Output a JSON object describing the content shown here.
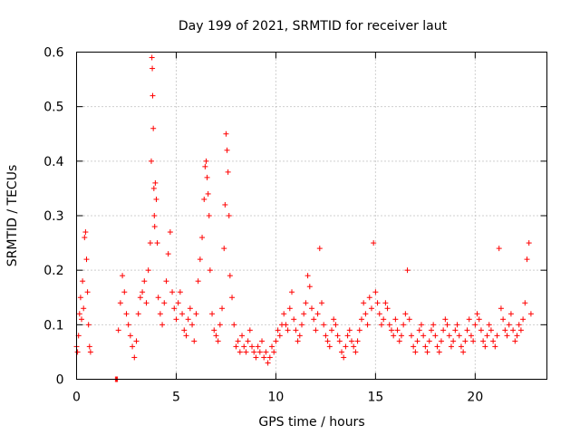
{
  "chart_data": {
    "type": "scatter",
    "title": "Day 199 of 2021, SRMTID for receiver laut",
    "xlabel": "GPS time / hours",
    "ylabel": "SRMTID / TECUs",
    "xlim": [
      0,
      23.6
    ],
    "ylim": [
      0,
      0.6
    ],
    "xticks": [
      "0",
      "5",
      "10",
      "15",
      "20"
    ],
    "xtick_values": [
      0,
      5,
      10,
      15,
      20
    ],
    "yticks": [
      "0",
      "0.1",
      "0.2",
      "0.3",
      "0.4",
      "0.5",
      "0.6"
    ],
    "ytick_values": [
      0,
      0.1,
      0.2,
      0.3,
      0.4,
      0.5,
      0.6
    ],
    "grid": true,
    "marker": "+",
    "color": "#ff0000",
    "series": [
      {
        "name": "SRMTID",
        "x": [
          0.0,
          0.05,
          0.1,
          0.15,
          0.2,
          0.25,
          0.3,
          0.35,
          0.4,
          0.45,
          0.5,
          0.55,
          0.6,
          0.65,
          0.7,
          1.95,
          2.0,
          2.05,
          2.1,
          2.2,
          2.3,
          2.4,
          2.5,
          2.6,
          2.7,
          2.8,
          2.9,
          3.0,
          3.1,
          3.2,
          3.3,
          3.4,
          3.5,
          3.6,
          3.7,
          3.75,
          3.78,
          3.8,
          3.82,
          3.85,
          3.88,
          3.9,
          3.92,
          3.95,
          4.0,
          4.05,
          4.1,
          4.2,
          4.3,
          4.4,
          4.5,
          4.6,
          4.7,
          4.8,
          4.9,
          5.0,
          5.1,
          5.2,
          5.3,
          5.4,
          5.5,
          5.6,
          5.7,
          5.8,
          5.9,
          6.0,
          6.1,
          6.2,
          6.3,
          6.4,
          6.45,
          6.5,
          6.55,
          6.6,
          6.65,
          6.7,
          6.8,
          6.9,
          7.0,
          7.1,
          7.2,
          7.3,
          7.4,
          7.45,
          7.5,
          7.55,
          7.6,
          7.65,
          7.7,
          7.8,
          7.9,
          8.0,
          8.1,
          8.2,
          8.3,
          8.4,
          8.5,
          8.6,
          8.7,
          8.8,
          8.9,
          9.0,
          9.1,
          9.2,
          9.3,
          9.4,
          9.5,
          9.6,
          9.7,
          9.8,
          9.9,
          10.0,
          10.1,
          10.2,
          10.3,
          10.4,
          10.5,
          10.6,
          10.7,
          10.8,
          10.9,
          11.0,
          11.1,
          11.2,
          11.3,
          11.4,
          11.5,
          11.6,
          11.7,
          11.8,
          11.9,
          12.0,
          12.1,
          12.2,
          12.3,
          12.4,
          12.5,
          12.6,
          12.7,
          12.8,
          12.9,
          13.0,
          13.1,
          13.2,
          13.3,
          13.4,
          13.5,
          13.6,
          13.7,
          13.8,
          13.9,
          14.0,
          14.1,
          14.2,
          14.3,
          14.4,
          14.5,
          14.6,
          14.7,
          14.8,
          14.9,
          15.0,
          15.1,
          15.2,
          15.3,
          15.4,
          15.5,
          15.6,
          15.7,
          15.8,
          15.9,
          16.0,
          16.1,
          16.2,
          16.3,
          16.4,
          16.5,
          16.6,
          16.7,
          16.8,
          16.9,
          17.0,
          17.1,
          17.2,
          17.3,
          17.4,
          17.5,
          17.6,
          17.7,
          17.8,
          17.9,
          18.0,
          18.1,
          18.2,
          18.3,
          18.4,
          18.5,
          18.6,
          18.7,
          18.8,
          18.9,
          19.0,
          19.1,
          19.2,
          19.3,
          19.4,
          19.5,
          19.6,
          19.7,
          19.8,
          19.9,
          20.0,
          20.1,
          20.2,
          20.3,
          20.4,
          20.5,
          20.6,
          20.7,
          20.8,
          20.9,
          21.0,
          21.1,
          21.2,
          21.3,
          21.4,
          21.5,
          21.6,
          21.7,
          21.8,
          21.9,
          22.0,
          22.1,
          22.2,
          22.3,
          22.4,
          22.5,
          22.6,
          22.7,
          22.8
        ],
        "y": [
          0.06,
          0.05,
          0.08,
          0.12,
          0.15,
          0.11,
          0.18,
          0.13,
          0.26,
          0.27,
          0.22,
          0.16,
          0.1,
          0.06,
          0.05,
          0.0,
          0.0,
          0.0,
          0.09,
          0.14,
          0.19,
          0.16,
          0.12,
          0.1,
          0.08,
          0.06,
          0.04,
          0.07,
          0.12,
          0.15,
          0.16,
          0.18,
          0.14,
          0.2,
          0.25,
          0.4,
          0.59,
          0.57,
          0.52,
          0.46,
          0.35,
          0.3,
          0.28,
          0.36,
          0.33,
          0.25,
          0.15,
          0.12,
          0.1,
          0.14,
          0.18,
          0.23,
          0.27,
          0.16,
          0.13,
          0.11,
          0.14,
          0.16,
          0.12,
          0.09,
          0.08,
          0.11,
          0.13,
          0.1,
          0.07,
          0.12,
          0.18,
          0.22,
          0.26,
          0.33,
          0.39,
          0.4,
          0.37,
          0.34,
          0.3,
          0.2,
          0.12,
          0.09,
          0.08,
          0.07,
          0.1,
          0.13,
          0.24,
          0.32,
          0.45,
          0.42,
          0.38,
          0.3,
          0.19,
          0.15,
          0.1,
          0.06,
          0.07,
          0.05,
          0.08,
          0.06,
          0.05,
          0.07,
          0.09,
          0.06,
          0.05,
          0.04,
          0.06,
          0.05,
          0.07,
          0.04,
          0.05,
          0.03,
          0.04,
          0.06,
          0.05,
          0.07,
          0.09,
          0.08,
          0.1,
          0.12,
          0.1,
          0.09,
          0.13,
          0.16,
          0.11,
          0.09,
          0.07,
          0.08,
          0.1,
          0.12,
          0.14,
          0.19,
          0.17,
          0.13,
          0.11,
          0.09,
          0.12,
          0.24,
          0.14,
          0.1,
          0.08,
          0.07,
          0.06,
          0.09,
          0.11,
          0.1,
          0.08,
          0.07,
          0.05,
          0.04,
          0.06,
          0.08,
          0.09,
          0.07,
          0.06,
          0.05,
          0.07,
          0.09,
          0.11,
          0.14,
          0.12,
          0.1,
          0.15,
          0.13,
          0.25,
          0.16,
          0.14,
          0.12,
          0.1,
          0.11,
          0.14,
          0.13,
          0.1,
          0.09,
          0.08,
          0.11,
          0.09,
          0.07,
          0.08,
          0.1,
          0.12,
          0.2,
          0.11,
          0.08,
          0.06,
          0.05,
          0.07,
          0.09,
          0.1,
          0.08,
          0.06,
          0.05,
          0.07,
          0.09,
          0.1,
          0.08,
          0.06,
          0.05,
          0.07,
          0.09,
          0.11,
          0.1,
          0.08,
          0.06,
          0.07,
          0.09,
          0.1,
          0.08,
          0.06,
          0.05,
          0.07,
          0.09,
          0.11,
          0.08,
          0.07,
          0.1,
          0.12,
          0.11,
          0.09,
          0.07,
          0.06,
          0.08,
          0.1,
          0.09,
          0.07,
          0.06,
          0.08,
          0.24,
          0.13,
          0.11,
          0.09,
          0.08,
          0.1,
          0.12,
          0.09,
          0.07,
          0.08,
          0.1,
          0.09,
          0.11,
          0.14,
          0.22,
          0.25,
          0.12
        ]
      }
    ]
  }
}
